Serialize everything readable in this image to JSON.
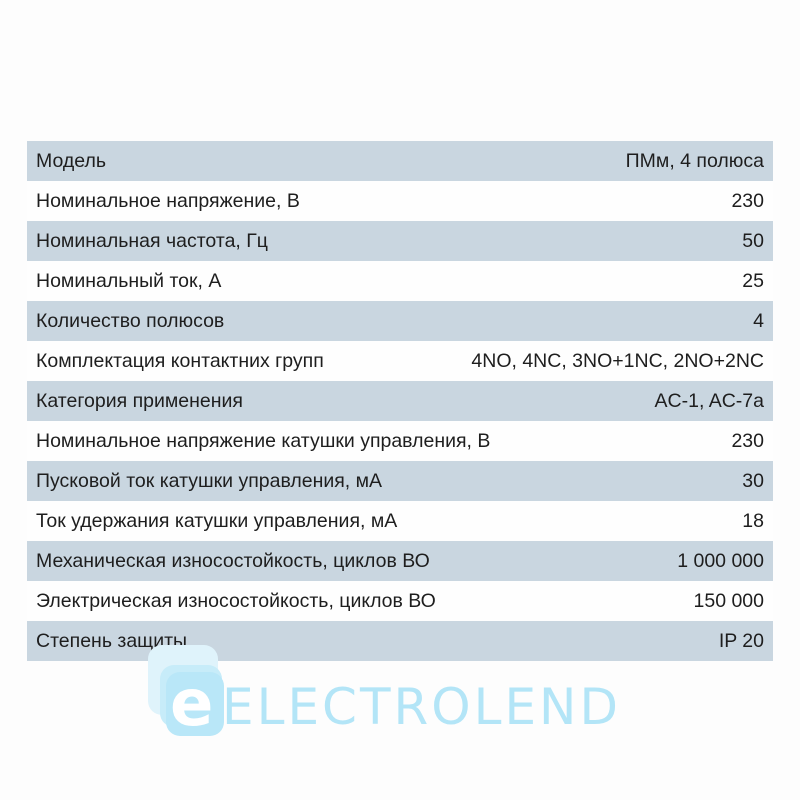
{
  "specs": [
    {
      "label": "Модель",
      "value": "ПМм, 4 полюса"
    },
    {
      "label": "Номинальное напряжение, В",
      "value": "230"
    },
    {
      "label": "Номинальная частота, Гц",
      "value": "50"
    },
    {
      "label": "Номинальный ток, А",
      "value": "25"
    },
    {
      "label": "Количество полюсов",
      "value": "4"
    },
    {
      "label": "Комплектация контактних групп",
      "value": "4NO, 4NC, 3NO+1NC, 2NO+2NC"
    },
    {
      "label": "Категория применения",
      "value": "AC-1, AC-7a"
    },
    {
      "label": "Номинальное напряжение катушки управления, В",
      "value": "230"
    },
    {
      "label": "Пусковой ток катушки управления, мА",
      "value": "30"
    },
    {
      "label": "Ток удержания катушки управления, мА",
      "value": "18"
    },
    {
      "label": "Механическая износостойкость, циклов ВО",
      "value": "1 000 000"
    },
    {
      "label": "Электрическая износостойкость, циклов ВО",
      "value": "150 000"
    },
    {
      "label": "Степень защиты",
      "value": "IP 20"
    }
  ],
  "watermark": {
    "letter": "e",
    "text": "ELECTROLEND"
  },
  "colors": {
    "shaded_row": "#c9d6e0",
    "watermark": "#b3e5f7"
  }
}
